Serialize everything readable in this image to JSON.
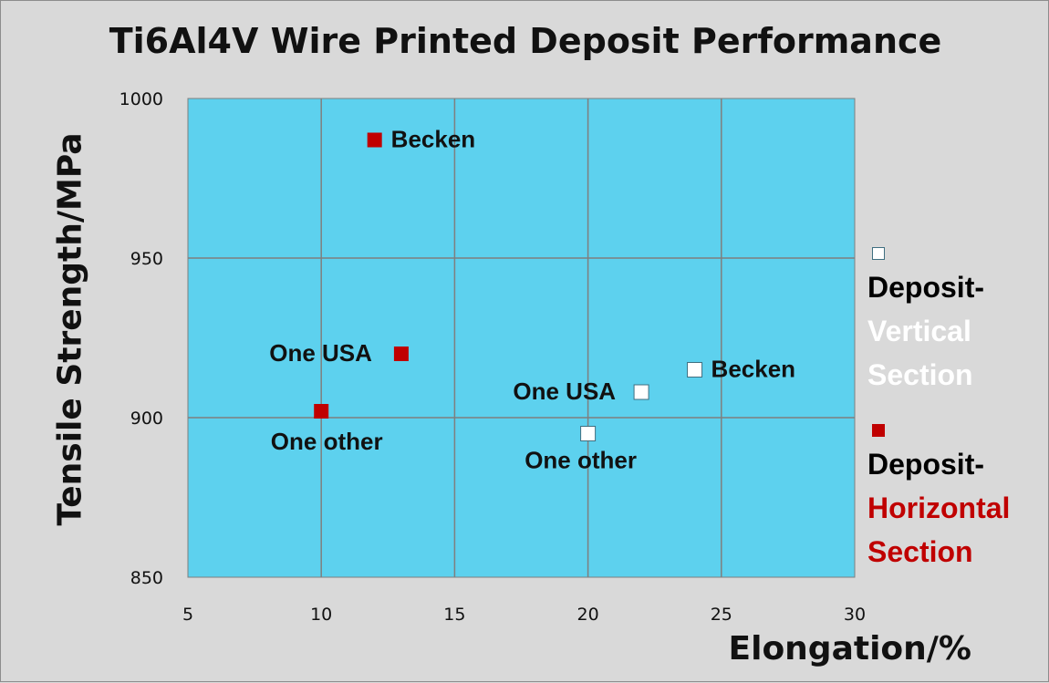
{
  "chart_data": {
    "type": "scatter",
    "title": "Ti6Al4V Wire Printed Deposit Performance",
    "xlabel": "Elongation/%",
    "ylabel": "Tensile Strength/MPa",
    "xlim": [
      5,
      30
    ],
    "ylim": [
      850,
      1000
    ],
    "x_ticks": [
      5,
      10,
      15,
      20,
      25,
      30
    ],
    "y_ticks": [
      850,
      900,
      950,
      1000
    ],
    "grid": true,
    "legend_position": "right",
    "series": [
      {
        "name_parts": [
          "Deposit-",
          "Vertical",
          "Section"
        ],
        "marker": "open-square",
        "color": "#ffffff",
        "label_color": "#ffffff",
        "points": [
          {
            "x": 24,
            "y": 915,
            "label": "Becken"
          },
          {
            "x": 22,
            "y": 908,
            "label": "One USA"
          },
          {
            "x": 20,
            "y": 895,
            "label": "One other"
          }
        ]
      },
      {
        "name_parts": [
          "Deposit-",
          "Horizontal",
          "Section"
        ],
        "marker": "filled-square",
        "color": "#c00000",
        "label_color": "#c00000",
        "points": [
          {
            "x": 12,
            "y": 987,
            "label": "Becken"
          },
          {
            "x": 13,
            "y": 920,
            "label": "One USA"
          },
          {
            "x": 10,
            "y": 902,
            "label": "One other"
          }
        ]
      }
    ],
    "colors": {
      "plot_background": "#5dd1ee",
      "gridline": "#7f7f7f",
      "figure_background": "#d9d9d9"
    }
  }
}
